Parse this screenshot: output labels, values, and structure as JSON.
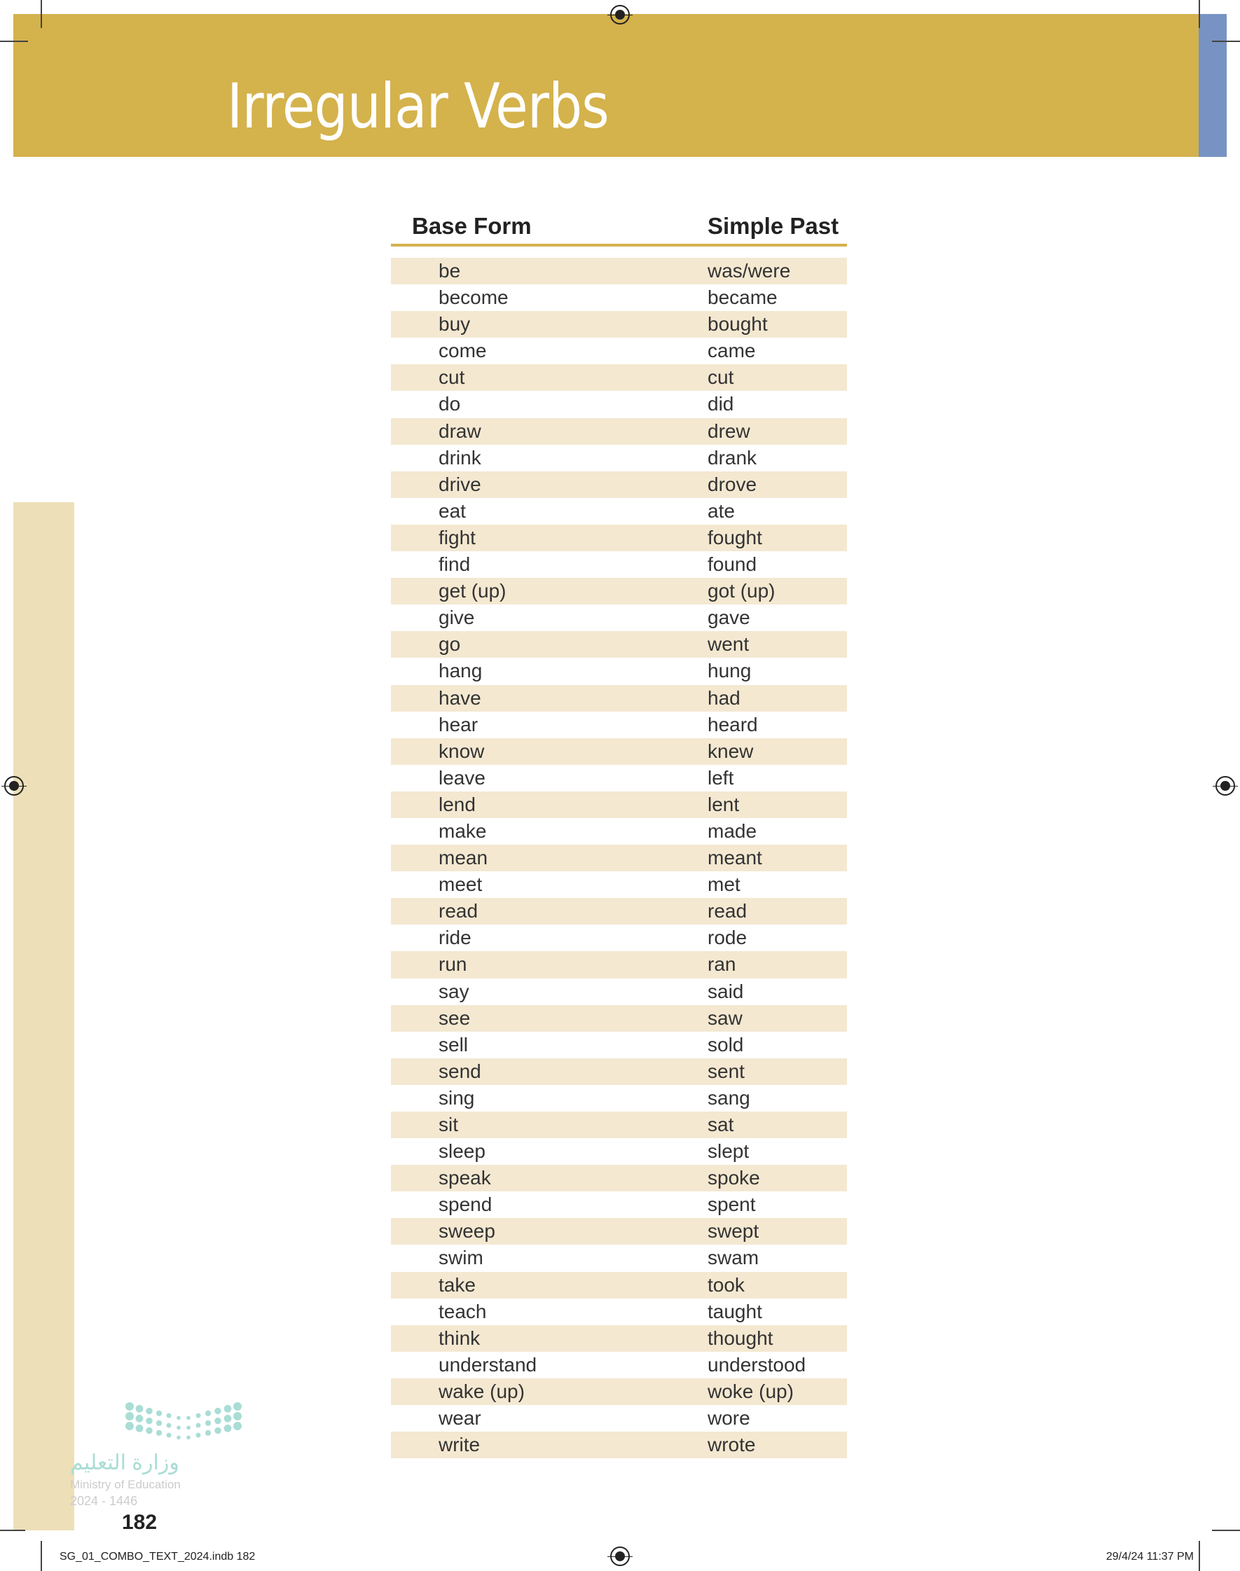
{
  "title": "Irregular Verbs",
  "table": {
    "headers": [
      "Base Form",
      "Simple Past"
    ],
    "rows": [
      [
        "be",
        "was/were"
      ],
      [
        "become",
        "became"
      ],
      [
        "buy",
        "bought"
      ],
      [
        "come",
        "came"
      ],
      [
        "cut",
        "cut"
      ],
      [
        "do",
        "did"
      ],
      [
        "draw",
        "drew"
      ],
      [
        "drink",
        "drank"
      ],
      [
        "drive",
        "drove"
      ],
      [
        "eat",
        "ate"
      ],
      [
        "fight",
        "fought"
      ],
      [
        "find",
        "found"
      ],
      [
        "get (up)",
        "got (up)"
      ],
      [
        "give",
        "gave"
      ],
      [
        "go",
        "went"
      ],
      [
        "hang",
        "hung"
      ],
      [
        "have",
        "had"
      ],
      [
        "hear",
        "heard"
      ],
      [
        "know",
        "knew"
      ],
      [
        "leave",
        "left"
      ],
      [
        "lend",
        "lent"
      ],
      [
        "make",
        "made"
      ],
      [
        "mean",
        "meant"
      ],
      [
        "meet",
        "met"
      ],
      [
        "read",
        "read"
      ],
      [
        "ride",
        "rode"
      ],
      [
        "run",
        "ran"
      ],
      [
        "say",
        "said"
      ],
      [
        "see",
        "saw"
      ],
      [
        "sell",
        "sold"
      ],
      [
        "send",
        "sent"
      ],
      [
        "sing",
        "sang"
      ],
      [
        "sit",
        "sat"
      ],
      [
        "sleep",
        "slept"
      ],
      [
        "speak",
        "spoke"
      ],
      [
        "spend",
        "spent"
      ],
      [
        "sweep",
        "swept"
      ],
      [
        "swim",
        "swam"
      ],
      [
        "take",
        "took"
      ],
      [
        "teach",
        "taught"
      ],
      [
        "think",
        "thought"
      ],
      [
        "understand",
        "understood"
      ],
      [
        "wake (up)",
        "woke (up)"
      ],
      [
        "wear",
        "wore"
      ],
      [
        "write",
        "wrote"
      ]
    ]
  },
  "watermark": {
    "arabic": "وزارة التعليم",
    "english": "Ministry of Education",
    "year": "2024 - 1446"
  },
  "page_number": "182",
  "footer": {
    "file": "SG_01_COMBO_TEXT_2024.indb   182",
    "date": "29/4/24   11:37 PM"
  },
  "colors": {
    "banner": "#d4b24c",
    "accent_blue": "#7793c3",
    "row_stripe": "#f4e8d1",
    "side_strip": "#eddfb8"
  }
}
